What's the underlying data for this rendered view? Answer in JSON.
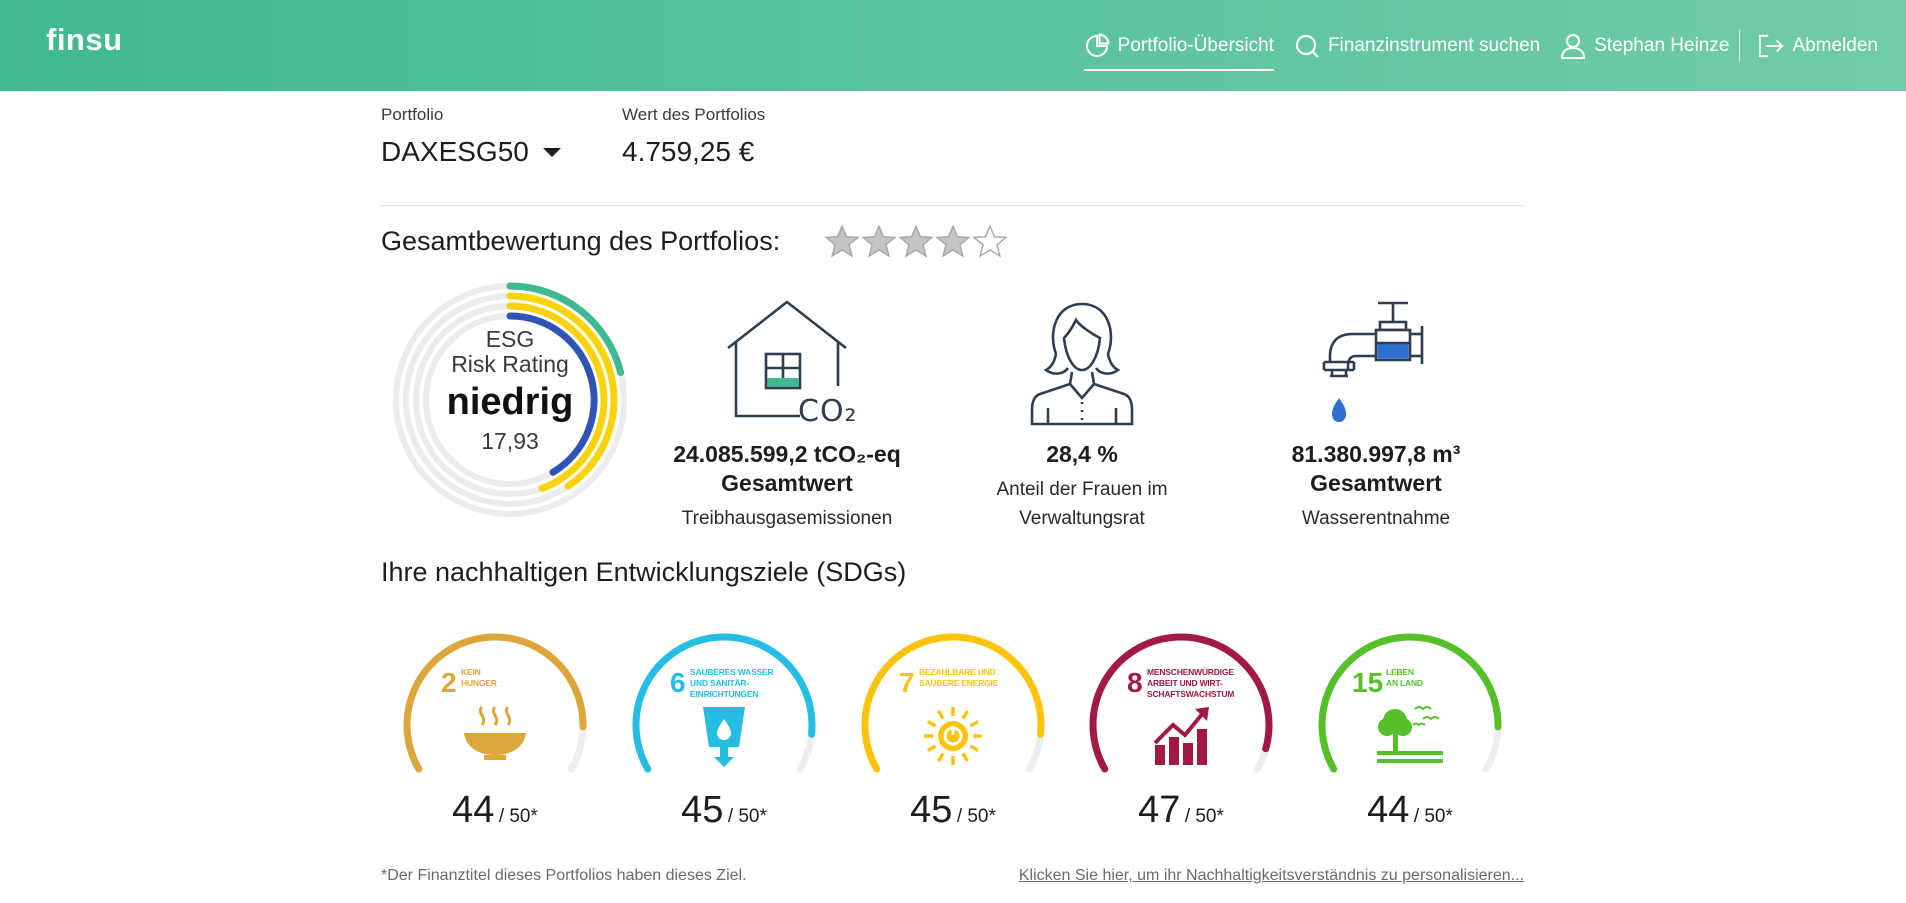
{
  "header": {
    "logo": "finsu",
    "nav": {
      "overview": "Portfolio-Übersicht",
      "search": "Finanzinstrument suchen",
      "user": "Stephan Heinze",
      "logout": "Abmelden"
    }
  },
  "portfolio": {
    "label": "Portfolio",
    "selected": "DAXESG50",
    "value_label": "Wert des Portfolios",
    "value": "4.759,25 €"
  },
  "overall": {
    "title": "Gesamtbewertung des Portfolios:",
    "rating": 4,
    "max": 5
  },
  "esg": {
    "line1": "ESG",
    "line2": "Risk Rating",
    "level": "niedrig",
    "score": "17,93",
    "colors": [
      "#3fb991",
      "#f6d30a",
      "#2f54b3"
    ]
  },
  "metrics": [
    {
      "value": "24.085.599,2 tCO₂-eq",
      "value2": "Gesamtwert",
      "label": "Treibhausgasemissionen",
      "icon": "house-co2-icon"
    },
    {
      "value": "28,4 %",
      "label1": "Anteil der Frauen im",
      "label2": "Verwaltungsrat",
      "icon": "woman-icon"
    },
    {
      "value": "81.380.997,8 m³",
      "value2": "Gesamtwert",
      "label": "Wasserentnahme",
      "icon": "water-tap-icon"
    }
  ],
  "co2_label": "CO₂",
  "sdg": {
    "title": "Ihre nachhaltigen Entwicklungsziele (SDGs)",
    "max_label": "/ 50*",
    "items": [
      {
        "number": "2",
        "name1": "KEIN",
        "name2": "HUNGER",
        "name3": "",
        "score": "44",
        "color": "#dda63a",
        "icon": "bowl-icon"
      },
      {
        "number": "6",
        "name1": "SAUBERES WASSER",
        "name2": "UND SANITÄR-",
        "name3": "EINRICHTUNGEN",
        "score": "45",
        "color": "#26bde2",
        "icon": "water-glass-icon"
      },
      {
        "number": "7",
        "name1": "BEZAHLBARE UND",
        "name2": "SAUBERE ENERGIE",
        "name3": "",
        "score": "45",
        "color": "#fcc30b",
        "icon": "sun-power-icon"
      },
      {
        "number": "8",
        "name1": "MENSCHENWÜRDIGE",
        "name2": "ARBEIT UND WIRT-",
        "name3": "SCHAFTSWACHSTUM",
        "score": "47",
        "color": "#a21942",
        "icon": "growth-chart-icon"
      },
      {
        "number": "15",
        "name1": "LEBEN",
        "name2": "AN LAND",
        "name3": "",
        "score": "44",
        "color": "#56c02b",
        "icon": "tree-birds-icon"
      }
    ]
  },
  "footnote": "*Der Finanztitel dieses Portfolios haben dieses Ziel.",
  "personalize_link": "Klicken Sie hier, um ihr Nachhaltigkeitsverständnis zu personalisieren..."
}
